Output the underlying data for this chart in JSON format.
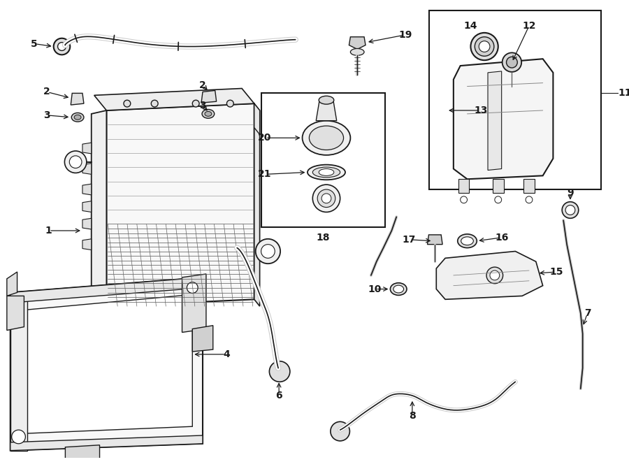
{
  "bg": "#ffffff",
  "lc": "#1a1a1a",
  "fig_w": 9.0,
  "fig_h": 6.61,
  "dpi": 100,
  "label_fs": 10,
  "lw": 1.2
}
